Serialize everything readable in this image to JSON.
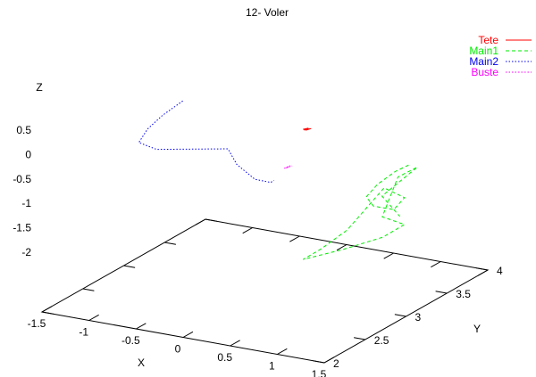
{
  "chart_data": {
    "type": "line",
    "title": "12- Voler",
    "xlabel": "X",
    "ylabel": "Y",
    "zlabel": "Z",
    "xlim": [
      -1.5,
      1.5
    ],
    "ylim": [
      2,
      4
    ],
    "zlim": [
      -2,
      0.5
    ],
    "xticks": [
      "-1.5",
      "-1",
      "-0.5",
      "0",
      "0.5",
      "1",
      "1.5"
    ],
    "yticks": [
      "2",
      "2.5",
      "3",
      "3.5",
      "4"
    ],
    "zticks": [
      "0.5",
      "0",
      "-0.5",
      "-1",
      "-1.5",
      "-2"
    ],
    "legend_position": "top-right",
    "series": [
      {
        "name": "Tete",
        "color": "#ff0000",
        "dash": "solid",
        "points": [
          [
            -0.22,
            3.72,
            0.55
          ],
          [
            -0.18,
            3.74,
            0.57
          ],
          [
            -0.2,
            3.73,
            0.53
          ],
          [
            -0.16,
            3.75,
            0.56
          ],
          [
            -0.21,
            3.72,
            0.54
          ]
        ]
      },
      {
        "name": "Main1",
        "color": "#00ee00",
        "dash": "dashed",
        "points": [
          [
            1.05,
            3.55,
            0.42
          ],
          [
            0.95,
            3.5,
            0.3
          ],
          [
            0.85,
            3.4,
            0.1
          ],
          [
            0.8,
            3.32,
            -0.1
          ],
          [
            0.85,
            3.35,
            -0.3
          ],
          [
            0.98,
            3.45,
            -0.42
          ],
          [
            1.05,
            3.5,
            -0.2
          ],
          [
            0.92,
            3.4,
            0.05
          ],
          [
            0.8,
            3.3,
            -0.35
          ],
          [
            0.7,
            3.2,
            -0.7
          ],
          [
            0.55,
            3.05,
            -1.0
          ],
          [
            0.45,
            2.95,
            -1.15
          ],
          [
            0.7,
            3.15,
            -1.05
          ],
          [
            0.95,
            3.35,
            -0.9
          ],
          [
            1.05,
            3.5,
            -0.75
          ],
          [
            0.9,
            3.4,
            -0.55
          ],
          [
            0.98,
            3.5,
            0.2
          ],
          [
            1.1,
            3.6,
            0.35
          ],
          [
            0.88,
            3.42,
            -0.15
          ],
          [
            1.0,
            3.5,
            -0.6
          ]
        ]
      },
      {
        "name": "Main2",
        "color": "#0000ee",
        "dash": "dotted",
        "points": [
          [
            -1.35,
            3.55,
            0.9
          ],
          [
            -1.45,
            3.42,
            0.7
          ],
          [
            -1.55,
            3.35,
            0.45
          ],
          [
            -1.6,
            3.3,
            0.2
          ],
          [
            -1.5,
            3.4,
            0.0
          ],
          [
            -1.25,
            3.55,
            -0.05
          ],
          [
            -1.0,
            3.7,
            -0.1
          ],
          [
            -0.95,
            3.75,
            -0.45
          ],
          [
            -0.8,
            3.8,
            -0.75
          ],
          [
            -0.65,
            3.82,
            -0.78
          ],
          [
            -0.6,
            3.8,
            -0.7
          ]
        ]
      },
      {
        "name": "Buste",
        "color": "#ff00ff",
        "dash": "dotted",
        "points": [
          [
            -0.2,
            3.5,
            -0.02
          ],
          [
            -0.18,
            3.52,
            0.01
          ],
          [
            -0.22,
            3.49,
            -0.03
          ],
          [
            -0.17,
            3.53,
            0.0
          ]
        ]
      }
    ]
  }
}
